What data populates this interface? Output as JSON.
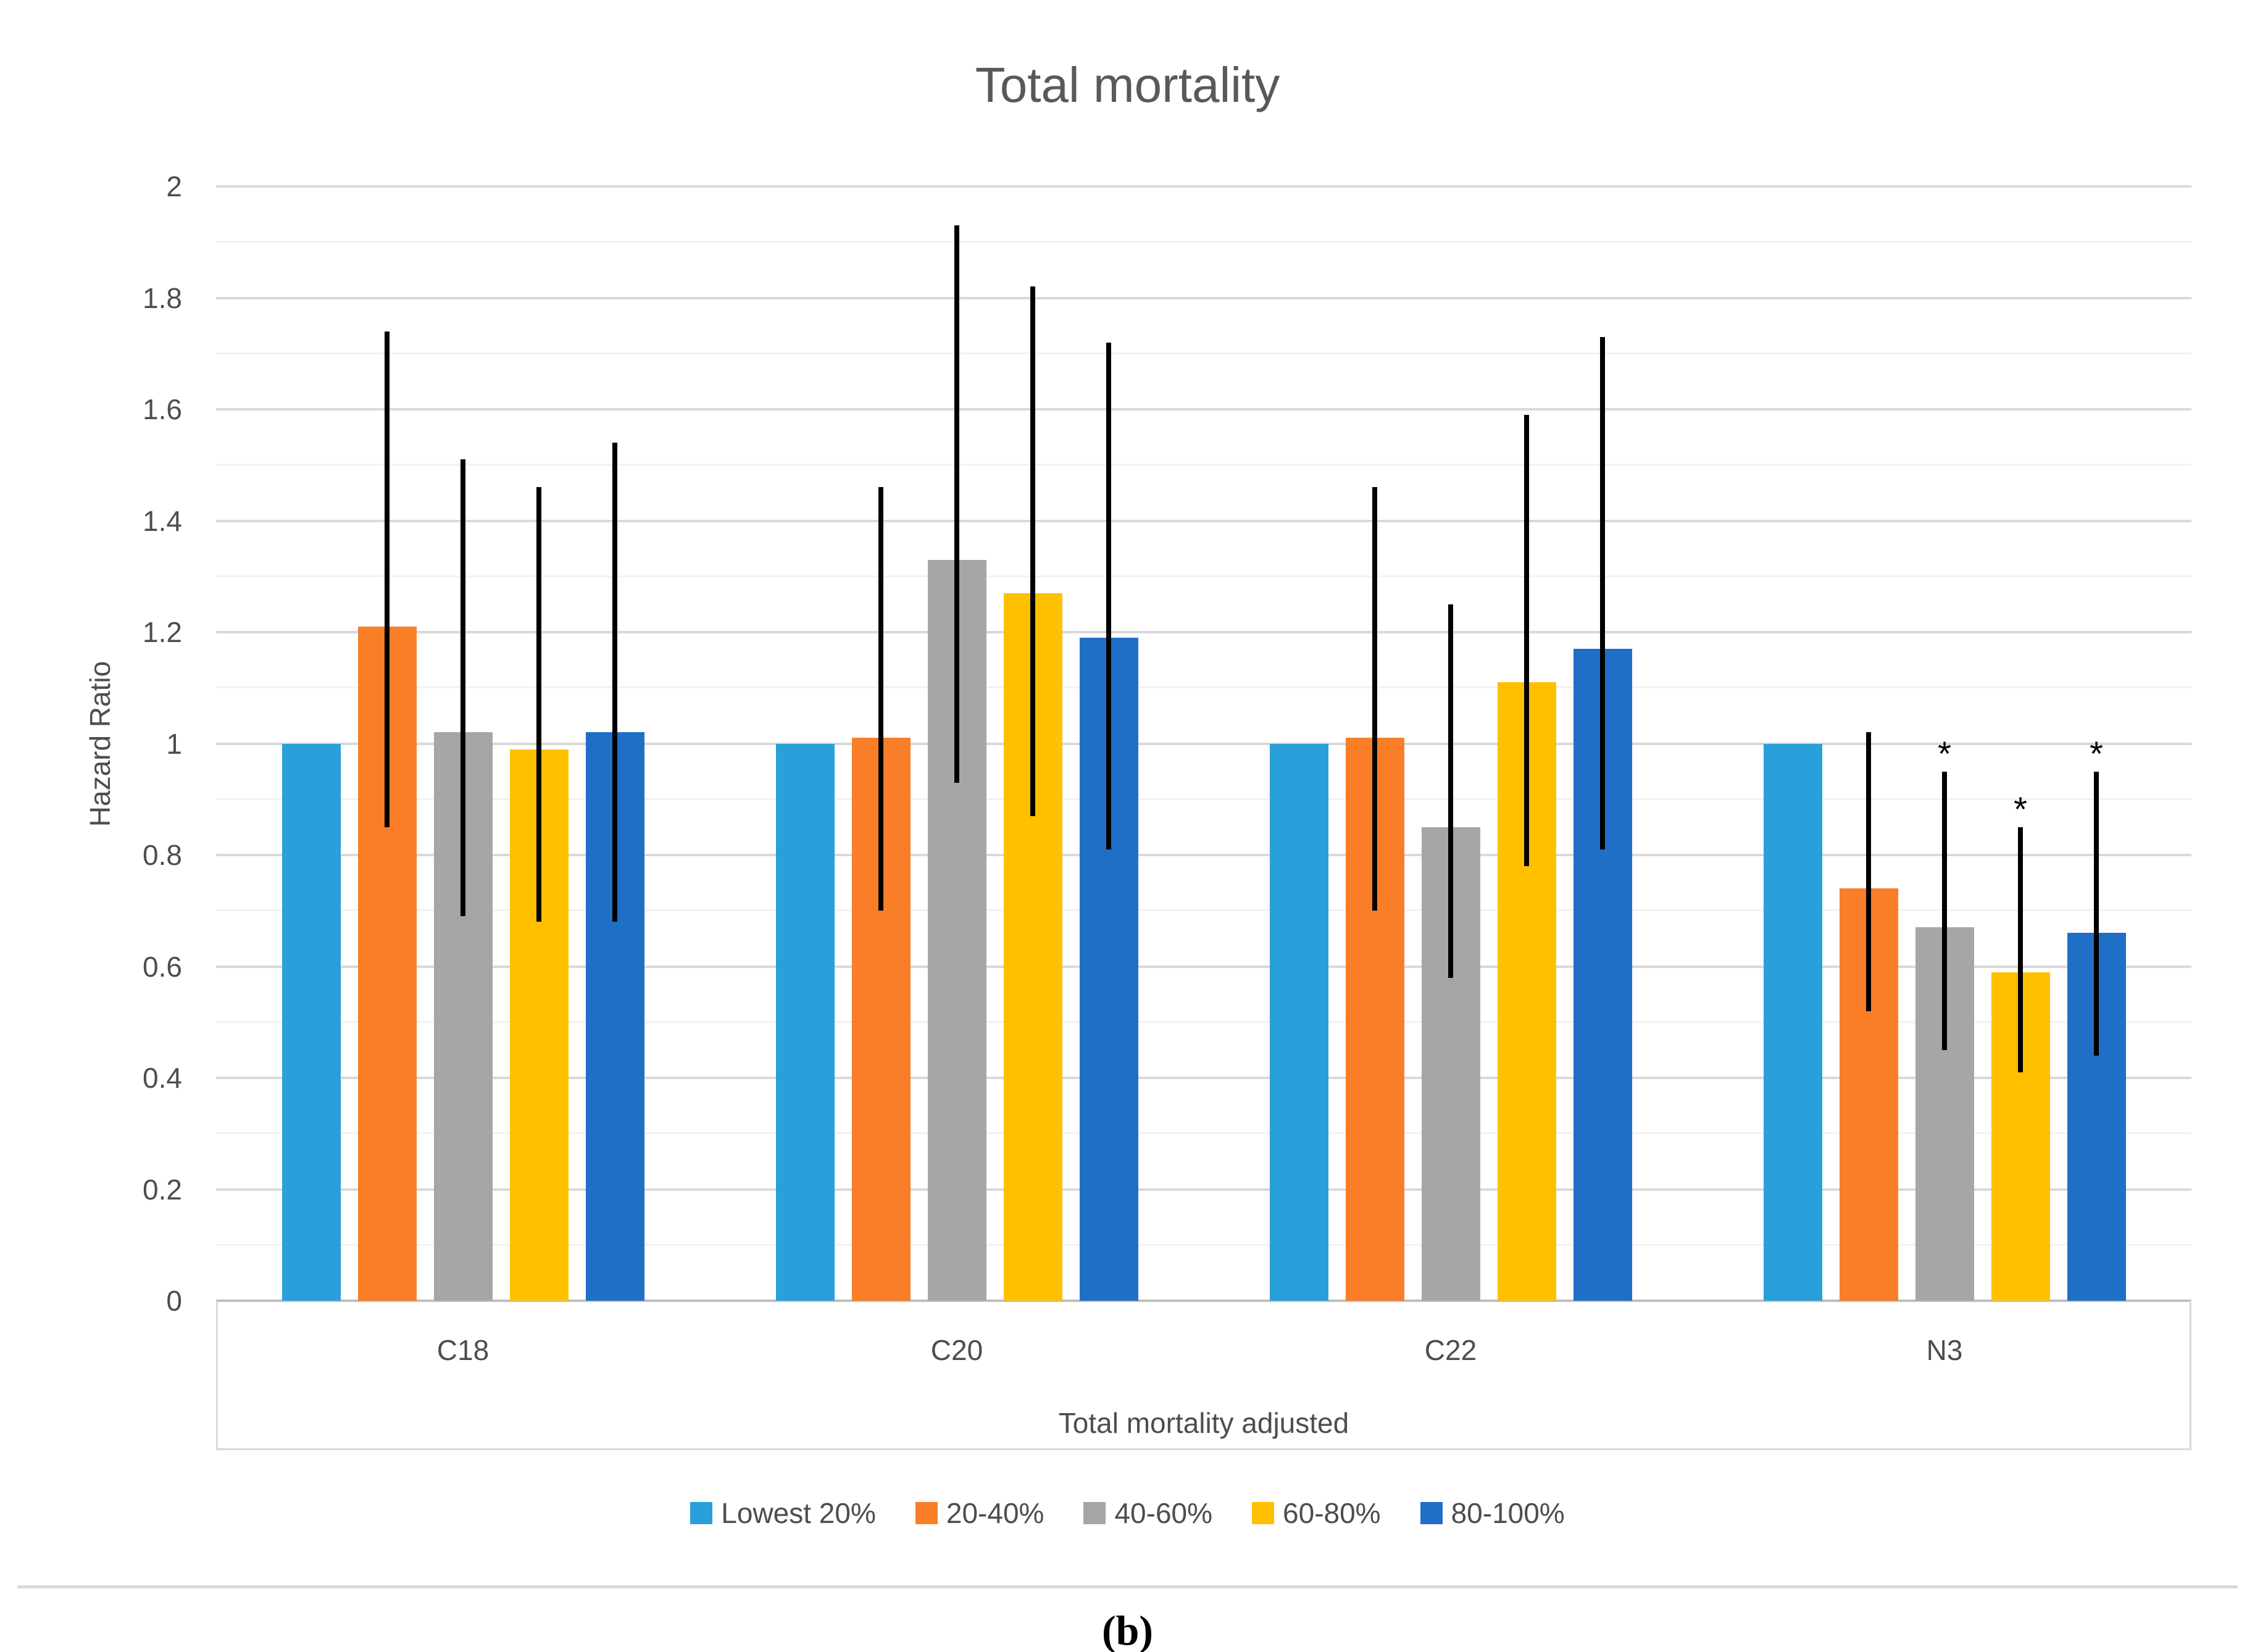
{
  "title": "Total mortality",
  "caption": "(b)",
  "significance_marker": "*",
  "chart_data": {
    "type": "bar",
    "title": "Total mortality",
    "xlabel": "Total mortality adjusted",
    "ylabel": "Hazard Ratio",
    "categories": [
      "C18",
      "C20",
      "C22",
      "N3"
    ],
    "ylim": [
      0,
      2
    ],
    "ytick_step": 0.2,
    "minor_grid_step": 0.1,
    "grid": true,
    "legend_position": "bottom",
    "error_bars": true,
    "series": [
      {
        "name": "Lowest 20%",
        "color": "#29A0DA",
        "values": [
          1.0,
          1.0,
          1.0,
          1.0
        ],
        "ci_low": [
          null,
          null,
          null,
          null
        ],
        "ci_high": [
          null,
          null,
          null,
          null
        ],
        "significant": [
          false,
          false,
          false,
          false
        ]
      },
      {
        "name": "20-40%",
        "color": "#F97E27",
        "values": [
          1.21,
          1.01,
          1.01,
          0.74
        ],
        "ci_low": [
          0.85,
          0.7,
          0.7,
          0.52
        ],
        "ci_high": [
          1.74,
          1.46,
          1.46,
          1.02
        ],
        "significant": [
          false,
          false,
          false,
          false
        ]
      },
      {
        "name": "40-60%",
        "color": "#A6A6A6",
        "values": [
          1.02,
          1.33,
          0.85,
          0.67
        ],
        "ci_low": [
          0.69,
          0.93,
          0.58,
          0.45
        ],
        "ci_high": [
          1.51,
          1.93,
          1.25,
          0.95
        ],
        "significant": [
          false,
          false,
          false,
          true
        ]
      },
      {
        "name": "60-80%",
        "color": "#FFC000",
        "values": [
          0.99,
          1.27,
          1.11,
          0.59
        ],
        "ci_low": [
          0.68,
          0.87,
          0.78,
          0.41
        ],
        "ci_high": [
          1.46,
          1.82,
          1.59,
          0.85
        ],
        "significant": [
          false,
          false,
          false,
          true
        ]
      },
      {
        "name": "80-100%",
        "color": "#1F6FC6",
        "values": [
          1.02,
          1.19,
          1.17,
          0.66
        ],
        "ci_low": [
          0.68,
          0.81,
          0.81,
          0.44
        ],
        "ci_high": [
          1.54,
          1.72,
          1.73,
          0.95
        ],
        "significant": [
          false,
          false,
          false,
          true
        ]
      }
    ]
  }
}
